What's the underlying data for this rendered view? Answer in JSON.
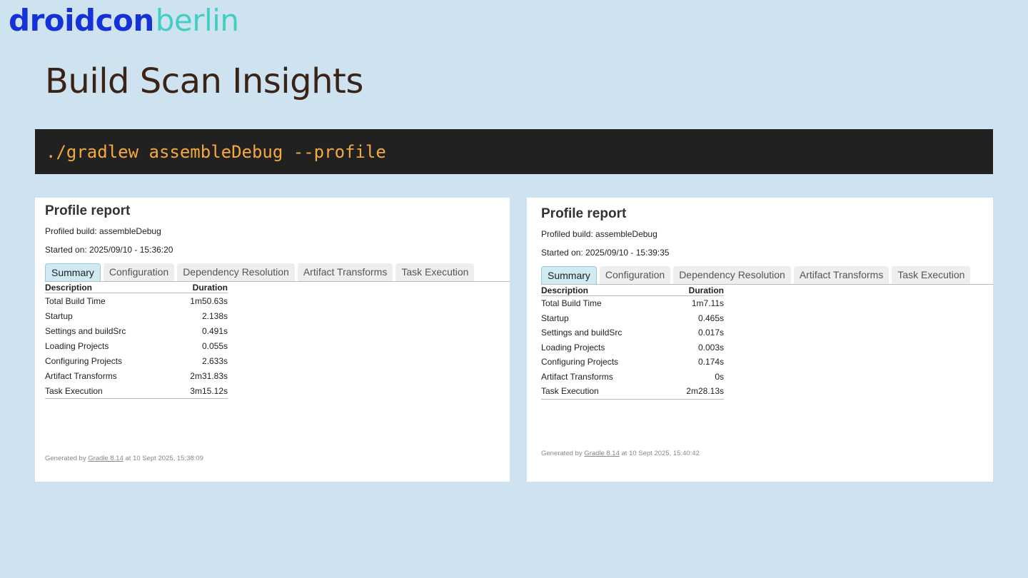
{
  "logo": {
    "droid": "droidcon",
    "city": "berlin"
  },
  "page_title": "Build Scan Insights",
  "command": "./gradlew assembleDebug --profile",
  "reports": [
    {
      "title": "Profile report",
      "profiled_build": "Profiled build: assembleDebug",
      "started_on": "Started on: 2025/09/10 - 15:36:20",
      "tabs": [
        "Summary",
        "Configuration",
        "Dependency Resolution",
        "Artifact Transforms",
        "Task Execution"
      ],
      "active_tab": "Summary",
      "headers": {
        "description": "Description",
        "duration": "Duration"
      },
      "rows": [
        {
          "description": "Total Build Time",
          "duration": "1m50.63s"
        },
        {
          "description": "Startup",
          "duration": "2.138s"
        },
        {
          "description": "Settings and buildSrc",
          "duration": "0.491s"
        },
        {
          "description": "Loading Projects",
          "duration": "0.055s"
        },
        {
          "description": "Configuring Projects",
          "duration": "2.633s"
        },
        {
          "description": "Artifact Transforms",
          "duration": "2m31.83s"
        },
        {
          "description": "Task Execution",
          "duration": "3m15.12s"
        }
      ],
      "footer": {
        "prefix": "Generated by ",
        "link": "Gradle 8.14",
        "suffix": " at 10 Sept 2025, 15:38:09"
      }
    },
    {
      "title": "Profile report",
      "profiled_build": "Profiled build: assembleDebug",
      "started_on": "Started on: 2025/09/10 - 15:39:35",
      "tabs": [
        "Summary",
        "Configuration",
        "Dependency Resolution",
        "Artifact Transforms",
        "Task Execution"
      ],
      "active_tab": "Summary",
      "headers": {
        "description": "Description",
        "duration": "Duration"
      },
      "rows": [
        {
          "description": "Total Build Time",
          "duration": "1m7.11s"
        },
        {
          "description": "Startup",
          "duration": "0.465s"
        },
        {
          "description": "Settings and buildSrc",
          "duration": "0.017s"
        },
        {
          "description": "Loading Projects",
          "duration": "0.003s"
        },
        {
          "description": "Configuring Projects",
          "duration": "0.174s"
        },
        {
          "description": "Artifact Transforms",
          "duration": "0s"
        },
        {
          "description": "Task Execution",
          "duration": "2m28.13s"
        }
      ],
      "footer": {
        "prefix": "Generated by ",
        "link": "Gradle 8.14",
        "suffix": " at 10 Sept 2025, 15:40:42"
      }
    }
  ]
}
